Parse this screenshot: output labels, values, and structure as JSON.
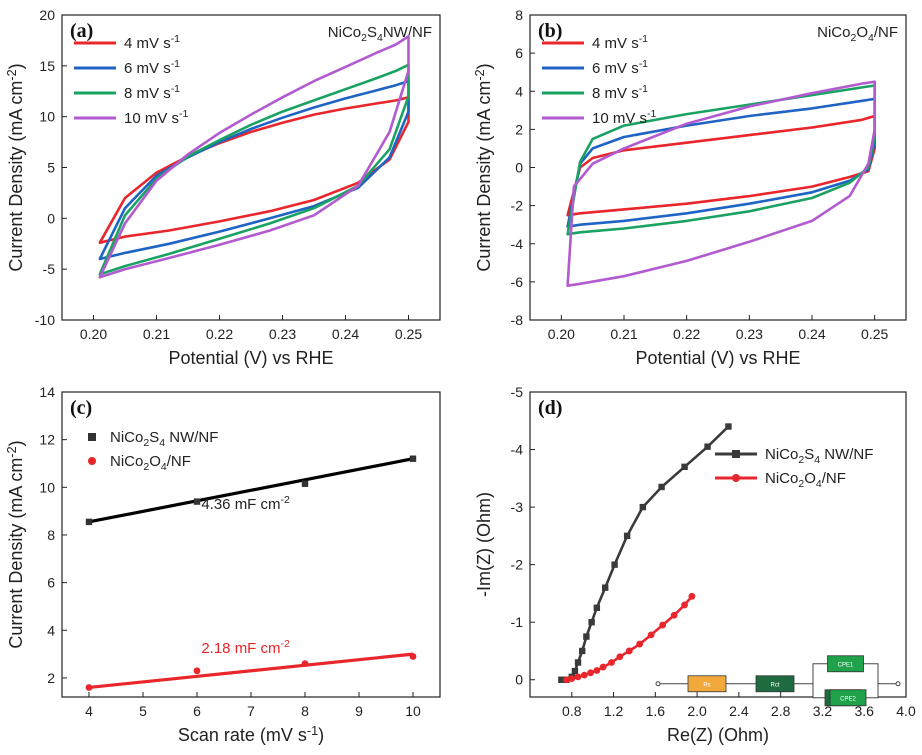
{
  "chart_data": [
    {
      "panel": "(a)",
      "type": "line",
      "title": "",
      "annotation": "NiCo2S4NW/NF",
      "xlabel": "Potential (V) vs RHE",
      "ylabel": "Current Density (mA cm-2)",
      "xlim": [
        0.195,
        0.255
      ],
      "ylim": [
        -10,
        20
      ],
      "xticks": [
        "0.20",
        "0.21",
        "0.22",
        "0.23",
        "0.24",
        "0.25"
      ],
      "yticks": [
        "-10",
        "-5",
        "0",
        "5",
        "10",
        "15",
        "20"
      ],
      "legend_position": "top-left",
      "series": [
        {
          "name": "4 mV s-1",
          "color": "#e8262b",
          "x": [
            0.201,
            0.205,
            0.21,
            0.215,
            0.22,
            0.225,
            0.23,
            0.235,
            0.24,
            0.245,
            0.248,
            0.25,
            0.25,
            0.247,
            0.242,
            0.235,
            0.228,
            0.22,
            0.212,
            0.205,
            0.201
          ],
          "y": [
            -2.4,
            2.0,
            4.5,
            6.1,
            7.4,
            8.5,
            9.4,
            10.2,
            10.8,
            11.3,
            11.6,
            11.9,
            9.5,
            5.8,
            3.5,
            1.8,
            0.7,
            -0.3,
            -1.2,
            -1.8,
            -2.4
          ]
        },
        {
          "name": "6 mV s-1",
          "color": "#1f64c4",
          "x": [
            0.201,
            0.205,
            0.21,
            0.215,
            0.22,
            0.225,
            0.23,
            0.235,
            0.24,
            0.245,
            0.248,
            0.25,
            0.25,
            0.247,
            0.242,
            0.235,
            0.228,
            0.22,
            0.212,
            0.205,
            0.201
          ],
          "y": [
            -4.0,
            1.0,
            4.2,
            6.0,
            7.5,
            8.8,
            9.9,
            10.9,
            11.8,
            12.6,
            13.1,
            13.5,
            10.5,
            6.0,
            3.0,
            1.2,
            0.0,
            -1.3,
            -2.5,
            -3.4,
            -4.0
          ]
        },
        {
          "name": "8 mV s-1",
          "color": "#1aa262",
          "x": [
            0.201,
            0.205,
            0.21,
            0.215,
            0.22,
            0.225,
            0.23,
            0.235,
            0.24,
            0.245,
            0.248,
            0.25,
            0.25,
            0.247,
            0.242,
            0.235,
            0.228,
            0.22,
            0.212,
            0.205,
            0.201
          ],
          "y": [
            -5.5,
            0.3,
            3.9,
            6.1,
            7.7,
            9.2,
            10.5,
            11.6,
            12.7,
            13.8,
            14.5,
            15.1,
            12.0,
            6.8,
            3.2,
            1.0,
            -0.5,
            -2.0,
            -3.5,
            -4.7,
            -5.5
          ]
        },
        {
          "name": "10 mV s-1",
          "color": "#b25ad0",
          "x": [
            0.201,
            0.205,
            0.21,
            0.215,
            0.22,
            0.225,
            0.23,
            0.235,
            0.24,
            0.245,
            0.248,
            0.25,
            0.25,
            0.247,
            0.242,
            0.235,
            0.228,
            0.22,
            0.212,
            0.205,
            0.201
          ],
          "y": [
            -5.8,
            -0.5,
            3.7,
            6.3,
            8.4,
            10.2,
            11.9,
            13.5,
            14.9,
            16.3,
            17.1,
            17.9,
            14.5,
            8.5,
            3.2,
            0.3,
            -1.2,
            -2.6,
            -3.9,
            -5.0,
            -5.8
          ]
        }
      ]
    },
    {
      "panel": "(b)",
      "type": "line",
      "title": "",
      "annotation": "NiCo2O4/NF",
      "xlabel": "Potential (V) vs RHE",
      "ylabel": "Current Density (mA cm-2)",
      "xlim": [
        0.195,
        0.255
      ],
      "ylim": [
        -8,
        8
      ],
      "xticks": [
        "0.20",
        "0.21",
        "0.22",
        "0.23",
        "0.24",
        "0.25"
      ],
      "yticks": [
        "-8",
        "-6",
        "-4",
        "-2",
        "0",
        "2",
        "4",
        "6",
        "8"
      ],
      "legend_position": "top-left",
      "series": [
        {
          "name": "4 mV s-1",
          "color": "#e8262b",
          "x": [
            0.201,
            0.203,
            0.205,
            0.21,
            0.22,
            0.23,
            0.24,
            0.248,
            0.25,
            0.25,
            0.249,
            0.246,
            0.24,
            0.23,
            0.22,
            0.21,
            0.203,
            0.201
          ],
          "y": [
            -2.5,
            0.0,
            0.5,
            0.9,
            1.3,
            1.7,
            2.1,
            2.5,
            2.7,
            1.0,
            -0.2,
            -0.5,
            -1.0,
            -1.5,
            -1.9,
            -2.2,
            -2.4,
            -2.5
          ]
        },
        {
          "name": "6 mV s-1",
          "color": "#1f64c4",
          "x": [
            0.201,
            0.203,
            0.205,
            0.21,
            0.22,
            0.23,
            0.24,
            0.248,
            0.25,
            0.25,
            0.249,
            0.246,
            0.24,
            0.23,
            0.22,
            0.21,
            0.203,
            0.201
          ],
          "y": [
            -3.1,
            0.2,
            1.0,
            1.6,
            2.2,
            2.7,
            3.1,
            3.5,
            3.6,
            1.3,
            -0.1,
            -0.7,
            -1.3,
            -1.9,
            -2.4,
            -2.8,
            -3.0,
            -3.1
          ]
        },
        {
          "name": "8 mV s-1",
          "color": "#1aa262",
          "x": [
            0.201,
            0.203,
            0.205,
            0.21,
            0.22,
            0.23,
            0.24,
            0.248,
            0.25,
            0.25,
            0.249,
            0.246,
            0.24,
            0.23,
            0.22,
            0.21,
            0.203,
            0.201
          ],
          "y": [
            -3.5,
            0.3,
            1.5,
            2.2,
            2.8,
            3.3,
            3.8,
            4.2,
            4.3,
            1.6,
            0.0,
            -0.8,
            -1.6,
            -2.3,
            -2.8,
            -3.2,
            -3.4,
            -3.5
          ]
        },
        {
          "name": "10 mV s-1",
          "color": "#b25ad0",
          "x": [
            0.201,
            0.202,
            0.205,
            0.21,
            0.22,
            0.23,
            0.24,
            0.248,
            0.25,
            0.25,
            0.249,
            0.246,
            0.24,
            0.23,
            0.22,
            0.21,
            0.203,
            0.201
          ],
          "y": [
            -6.2,
            -1.0,
            0.2,
            1.0,
            2.3,
            3.2,
            3.9,
            4.4,
            4.5,
            2.0,
            0.2,
            -1.5,
            -2.8,
            -3.9,
            -4.9,
            -5.7,
            -6.1,
            -6.2
          ]
        }
      ]
    },
    {
      "panel": "(c)",
      "type": "scatter",
      "title": "",
      "xlabel": "Scan rate (mV s-1)",
      "ylabel": "Current Density (mA cm-2)",
      "xlim": [
        3.5,
        10.5
      ],
      "ylim": [
        1.2,
        14
      ],
      "xticks": [
        "4",
        "5",
        "6",
        "7",
        "8",
        "9",
        "10"
      ],
      "yticks": [
        "2",
        "4",
        "6",
        "8",
        "10",
        "12",
        "14"
      ],
      "legend_position": "top-left",
      "series": [
        {
          "name": "NiCo2S4 NW/NF",
          "color": "#333333",
          "marker": "square",
          "x": [
            4,
            6,
            8,
            10
          ],
          "y": [
            8.55,
            9.4,
            10.15,
            11.2
          ],
          "fit": [
            [
              4,
              8.55
            ],
            [
              10,
              11.2
            ]
          ],
          "fit_label": "4.36 mF cm-2",
          "fit_label_color": "#222222"
        },
        {
          "name": "NiCo2O4/NF",
          "color": "#e8262b",
          "marker": "circle",
          "x": [
            4,
            6,
            8,
            10
          ],
          "y": [
            1.6,
            2.3,
            2.6,
            2.9
          ],
          "fit": [
            [
              4,
              1.6
            ],
            [
              10,
              3.0
            ]
          ],
          "fit_label": "2.18 mF cm-2",
          "fit_label_color": "#e8262b"
        }
      ]
    },
    {
      "panel": "(d)",
      "type": "line",
      "title": "",
      "xlabel": "Re(Z) (Ohm)",
      "ylabel": "-Im(Z) (Ohm)",
      "xlim": [
        0.4,
        4.0
      ],
      "ylim": [
        0.3,
        -5
      ],
      "xticks": [
        "0.8",
        "1.2",
        "1.6",
        "2.0",
        "2.4",
        "2.8",
        "3.2",
        "3.6",
        "4.0"
      ],
      "yticks": [
        "0",
        "-1",
        "-2",
        "-3",
        "-4",
        "-5"
      ],
      "legend_position": "top-right",
      "inset": "equivalent-circuit",
      "inset_labels": [
        "Rs",
        "Rct",
        "CPE1",
        "R1",
        "CPE2"
      ],
      "series": [
        {
          "name": "NiCo2S4 NW/NF",
          "color": "#3a3a3a",
          "marker": "square",
          "x": [
            0.7,
            0.75,
            0.8,
            0.83,
            0.86,
            0.9,
            0.94,
            0.99,
            1.04,
            1.12,
            1.21,
            1.33,
            1.48,
            1.66,
            1.88,
            2.1,
            2.3
          ],
          "y": [
            0.0,
            0.0,
            -0.05,
            -0.15,
            -0.3,
            -0.5,
            -0.75,
            -1.0,
            -1.25,
            -1.6,
            -2.0,
            -2.5,
            -3.0,
            -3.35,
            -3.7,
            -4.05,
            -4.4
          ]
        },
        {
          "name": "NiCo2O4/NF",
          "color": "#e8262b",
          "marker": "circle",
          "x": [
            0.75,
            0.8,
            0.86,
            0.92,
            0.98,
            1.04,
            1.1,
            1.18,
            1.26,
            1.35,
            1.45,
            1.56,
            1.67,
            1.78,
            1.88,
            1.95
          ],
          "y": [
            0.0,
            -0.02,
            -0.05,
            -0.08,
            -0.12,
            -0.16,
            -0.22,
            -0.3,
            -0.4,
            -0.5,
            -0.62,
            -0.78,
            -0.95,
            -1.12,
            -1.3,
            -1.45
          ]
        }
      ]
    }
  ]
}
